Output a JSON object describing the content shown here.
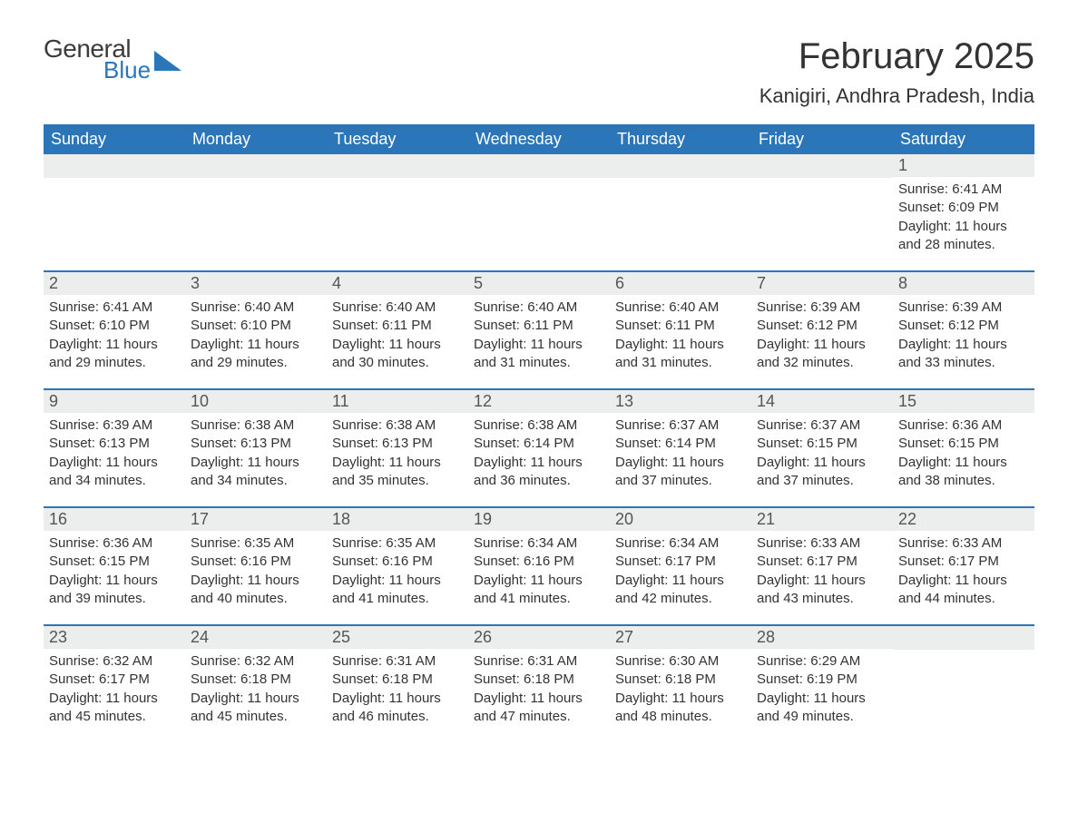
{
  "logo": {
    "general": "General",
    "blue": "Blue"
  },
  "title": "February 2025",
  "subtitle": "Kanigiri, Andhra Pradesh, India",
  "colors": {
    "header_bg": "#2a76b8",
    "header_fg": "#ffffff",
    "daynum_bg": "#eceded",
    "text": "#333333",
    "background": "#ffffff"
  },
  "weekdays": [
    "Sunday",
    "Monday",
    "Tuesday",
    "Wednesday",
    "Thursday",
    "Friday",
    "Saturday"
  ],
  "weeks": [
    [
      null,
      null,
      null,
      null,
      null,
      null,
      {
        "n": "1",
        "sr": "Sunrise: 6:41 AM",
        "ss": "Sunset: 6:09 PM",
        "dl": "Daylight: 11 hours and 28 minutes."
      }
    ],
    [
      {
        "n": "2",
        "sr": "Sunrise: 6:41 AM",
        "ss": "Sunset: 6:10 PM",
        "dl": "Daylight: 11 hours and 29 minutes."
      },
      {
        "n": "3",
        "sr": "Sunrise: 6:40 AM",
        "ss": "Sunset: 6:10 PM",
        "dl": "Daylight: 11 hours and 29 minutes."
      },
      {
        "n": "4",
        "sr": "Sunrise: 6:40 AM",
        "ss": "Sunset: 6:11 PM",
        "dl": "Daylight: 11 hours and 30 minutes."
      },
      {
        "n": "5",
        "sr": "Sunrise: 6:40 AM",
        "ss": "Sunset: 6:11 PM",
        "dl": "Daylight: 11 hours and 31 minutes."
      },
      {
        "n": "6",
        "sr": "Sunrise: 6:40 AM",
        "ss": "Sunset: 6:11 PM",
        "dl": "Daylight: 11 hours and 31 minutes."
      },
      {
        "n": "7",
        "sr": "Sunrise: 6:39 AM",
        "ss": "Sunset: 6:12 PM",
        "dl": "Daylight: 11 hours and 32 minutes."
      },
      {
        "n": "8",
        "sr": "Sunrise: 6:39 AM",
        "ss": "Sunset: 6:12 PM",
        "dl": "Daylight: 11 hours and 33 minutes."
      }
    ],
    [
      {
        "n": "9",
        "sr": "Sunrise: 6:39 AM",
        "ss": "Sunset: 6:13 PM",
        "dl": "Daylight: 11 hours and 34 minutes."
      },
      {
        "n": "10",
        "sr": "Sunrise: 6:38 AM",
        "ss": "Sunset: 6:13 PM",
        "dl": "Daylight: 11 hours and 34 minutes."
      },
      {
        "n": "11",
        "sr": "Sunrise: 6:38 AM",
        "ss": "Sunset: 6:13 PM",
        "dl": "Daylight: 11 hours and 35 minutes."
      },
      {
        "n": "12",
        "sr": "Sunrise: 6:38 AM",
        "ss": "Sunset: 6:14 PM",
        "dl": "Daylight: 11 hours and 36 minutes."
      },
      {
        "n": "13",
        "sr": "Sunrise: 6:37 AM",
        "ss": "Sunset: 6:14 PM",
        "dl": "Daylight: 11 hours and 37 minutes."
      },
      {
        "n": "14",
        "sr": "Sunrise: 6:37 AM",
        "ss": "Sunset: 6:15 PM",
        "dl": "Daylight: 11 hours and 37 minutes."
      },
      {
        "n": "15",
        "sr": "Sunrise: 6:36 AM",
        "ss": "Sunset: 6:15 PM",
        "dl": "Daylight: 11 hours and 38 minutes."
      }
    ],
    [
      {
        "n": "16",
        "sr": "Sunrise: 6:36 AM",
        "ss": "Sunset: 6:15 PM",
        "dl": "Daylight: 11 hours and 39 minutes."
      },
      {
        "n": "17",
        "sr": "Sunrise: 6:35 AM",
        "ss": "Sunset: 6:16 PM",
        "dl": "Daylight: 11 hours and 40 minutes."
      },
      {
        "n": "18",
        "sr": "Sunrise: 6:35 AM",
        "ss": "Sunset: 6:16 PM",
        "dl": "Daylight: 11 hours and 41 minutes."
      },
      {
        "n": "19",
        "sr": "Sunrise: 6:34 AM",
        "ss": "Sunset: 6:16 PM",
        "dl": "Daylight: 11 hours and 41 minutes."
      },
      {
        "n": "20",
        "sr": "Sunrise: 6:34 AM",
        "ss": "Sunset: 6:17 PM",
        "dl": "Daylight: 11 hours and 42 minutes."
      },
      {
        "n": "21",
        "sr": "Sunrise: 6:33 AM",
        "ss": "Sunset: 6:17 PM",
        "dl": "Daylight: 11 hours and 43 minutes."
      },
      {
        "n": "22",
        "sr": "Sunrise: 6:33 AM",
        "ss": "Sunset: 6:17 PM",
        "dl": "Daylight: 11 hours and 44 minutes."
      }
    ],
    [
      {
        "n": "23",
        "sr": "Sunrise: 6:32 AM",
        "ss": "Sunset: 6:17 PM",
        "dl": "Daylight: 11 hours and 45 minutes."
      },
      {
        "n": "24",
        "sr": "Sunrise: 6:32 AM",
        "ss": "Sunset: 6:18 PM",
        "dl": "Daylight: 11 hours and 45 minutes."
      },
      {
        "n": "25",
        "sr": "Sunrise: 6:31 AM",
        "ss": "Sunset: 6:18 PM",
        "dl": "Daylight: 11 hours and 46 minutes."
      },
      {
        "n": "26",
        "sr": "Sunrise: 6:31 AM",
        "ss": "Sunset: 6:18 PM",
        "dl": "Daylight: 11 hours and 47 minutes."
      },
      {
        "n": "27",
        "sr": "Sunrise: 6:30 AM",
        "ss": "Sunset: 6:18 PM",
        "dl": "Daylight: 11 hours and 48 minutes."
      },
      {
        "n": "28",
        "sr": "Sunrise: 6:29 AM",
        "ss": "Sunset: 6:19 PM",
        "dl": "Daylight: 11 hours and 49 minutes."
      },
      null
    ]
  ]
}
